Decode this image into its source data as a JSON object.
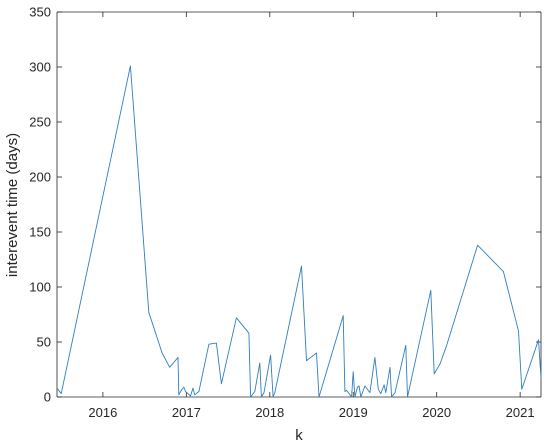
{
  "chart_data": {
    "type": "line",
    "title": "",
    "xlabel": "k",
    "ylabel": "interevent time (days)",
    "xlim": [
      2015.45,
      2021.25
    ],
    "ylim": [
      0,
      350
    ],
    "xticks": [
      2016,
      2017,
      2018,
      2019,
      2020,
      2021
    ],
    "yticks": [
      0,
      50,
      100,
      150,
      200,
      250,
      300,
      350
    ],
    "grid": false,
    "legend": "none",
    "line_color": "#2f7fbf",
    "series": [
      {
        "x": [
          2015.45,
          2015.5,
          2016.33,
          2016.55,
          2016.71,
          2016.8,
          2016.9,
          2016.91,
          2016.94,
          2016.97,
          2016.99,
          2017.02,
          2017.05,
          2017.08,
          2017.1,
          2017.15,
          2017.27,
          2017.36,
          2017.42,
          2017.6,
          2017.75,
          2017.77,
          2017.82,
          2017.88,
          2017.9,
          2017.93,
          2018.01,
          2018.04,
          2018.06,
          2018.38,
          2018.44,
          2018.56,
          2018.59,
          2018.88,
          2018.9,
          2018.92,
          2018.98,
          2019.0,
          2019.02,
          2019.05,
          2019.07,
          2019.09,
          2019.12,
          2019.14,
          2019.2,
          2019.26,
          2019.3,
          2019.33,
          2019.37,
          2019.39,
          2019.44,
          2019.46,
          2019.5,
          2019.63,
          2019.65,
          2019.93,
          2019.97,
          2020.04,
          2020.12,
          2020.49,
          2020.8,
          2020.98,
          2021.02,
          2021.22,
          2021.25
        ],
        "y": [
          8,
          3,
          301,
          77,
          40,
          27,
          36,
          2,
          6,
          9,
          5,
          3,
          1,
          8,
          2,
          5,
          48,
          49,
          12,
          72,
          58,
          0,
          5,
          31,
          0,
          4,
          38,
          0,
          4,
          119,
          33,
          40,
          0,
          74,
          5,
          6,
          0,
          23,
          0,
          9,
          10,
          0,
          6,
          10,
          4,
          36,
          7,
          3,
          11,
          4,
          27,
          0,
          4,
          47,
          0,
          97,
          21,
          30,
          47,
          138,
          114,
          60,
          7,
          52,
          17
        ]
      }
    ]
  }
}
